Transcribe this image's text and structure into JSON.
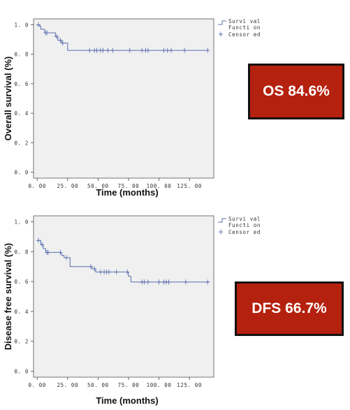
{
  "chart_data": [
    {
      "type": "line",
      "step": true,
      "xlabel": "Time (months)",
      "ylabel": "Overall survival (%)",
      "xlim": [
        -3,
        145
      ],
      "ylim": [
        -0.04,
        1.04
      ],
      "xticks": [
        "0. 00",
        "25. 00",
        "50. 00",
        "75. 00",
        "100. 00",
        "125. 00"
      ],
      "xtick_values": [
        0,
        25,
        50,
        75,
        100,
        125
      ],
      "yticks": [
        "0. 0",
        "0. 2",
        "0. 4",
        "0. 6",
        "0. 8",
        "1. 0"
      ],
      "ytick_values": [
        0,
        0.2,
        0.4,
        0.6,
        0.8,
        1.0
      ],
      "grid": false,
      "legend": {
        "position": "top-right",
        "line_label_1": "Survi val",
        "line_label_2": "Functi on",
        "censored_label": "Censor ed"
      },
      "series": [
        {
          "steps": [
            [
              0,
              1.0
            ],
            [
              2,
              0.99
            ],
            [
              3,
              0.97
            ],
            [
              6,
              0.945
            ],
            [
              15,
              0.92
            ],
            [
              17,
              0.895
            ],
            [
              20,
              0.876
            ],
            [
              25,
              0.826
            ],
            [
              140,
              0.826
            ]
          ],
          "censored": [
            [
              1,
              1.0
            ],
            [
              7,
              0.945
            ],
            [
              8,
              0.945
            ],
            [
              16,
              0.92
            ],
            [
              19,
              0.895
            ],
            [
              21,
              0.876
            ],
            [
              43,
              0.826
            ],
            [
              47,
              0.826
            ],
            [
              49,
              0.826
            ],
            [
              52,
              0.826
            ],
            [
              54,
              0.826
            ],
            [
              58,
              0.826
            ],
            [
              62,
              0.826
            ],
            [
              76,
              0.826
            ],
            [
              86,
              0.826
            ],
            [
              89,
              0.826
            ],
            [
              91,
              0.826
            ],
            [
              104,
              0.826
            ],
            [
              107,
              0.826
            ],
            [
              110,
              0.826
            ],
            [
              121,
              0.826
            ],
            [
              140,
              0.826
            ]
          ]
        }
      ],
      "badge": "OS 84.6%"
    },
    {
      "type": "line",
      "step": true,
      "xlabel": "Time (months)",
      "ylabel": "Disease free survival (%)",
      "xlim": [
        -3,
        145
      ],
      "ylim": [
        -0.04,
        1.04
      ],
      "xticks": [
        "0. 00",
        "25. 00",
        "50. 00",
        "75. 00",
        "100. 00",
        "125. 00"
      ],
      "xtick_values": [
        0,
        25,
        50,
        75,
        100,
        125
      ],
      "yticks": [
        "0. 0",
        "0. 2",
        "0. 4",
        "0. 6",
        "0. 8",
        "1. 0"
      ],
      "ytick_values": [
        0,
        0.2,
        0.4,
        0.6,
        0.8,
        1.0
      ],
      "grid": false,
      "legend": {
        "position": "top-right",
        "line_label_1": "Survi val",
        "line_label_2": "Functi on",
        "censored_label": "Censor ed"
      },
      "series": [
        {
          "steps": [
            [
              0,
              0.875
            ],
            [
              3,
              0.847
            ],
            [
              5,
              0.82
            ],
            [
              7,
              0.795
            ],
            [
              20,
              0.775
            ],
            [
              22,
              0.76
            ],
            [
              27,
              0.7
            ],
            [
              45,
              0.685
            ],
            [
              48,
              0.664
            ],
            [
              75,
              0.635
            ],
            [
              77,
              0.597
            ],
            [
              140,
              0.597
            ]
          ],
          "censored": [
            [
              1,
              0.875
            ],
            [
              4,
              0.847
            ],
            [
              8,
              0.795
            ],
            [
              9,
              0.795
            ],
            [
              19,
              0.795
            ],
            [
              24,
              0.76
            ],
            [
              44,
              0.7
            ],
            [
              47,
              0.685
            ],
            [
              52,
              0.664
            ],
            [
              55,
              0.664
            ],
            [
              57,
              0.664
            ],
            [
              59,
              0.664
            ],
            [
              65,
              0.664
            ],
            [
              74,
              0.664
            ],
            [
              86,
              0.597
            ],
            [
              88,
              0.597
            ],
            [
              91,
              0.597
            ],
            [
              100,
              0.597
            ],
            [
              104,
              0.597
            ],
            [
              106,
              0.597
            ],
            [
              108,
              0.597
            ],
            [
              122,
              0.597
            ],
            [
              140,
              0.597
            ]
          ]
        }
      ],
      "badge": "DFS 66.7%"
    }
  ],
  "colors": {
    "line": "#5b6fae",
    "plot_bg": "#f0f0f0",
    "badge_bg": "#b5210f"
  }
}
